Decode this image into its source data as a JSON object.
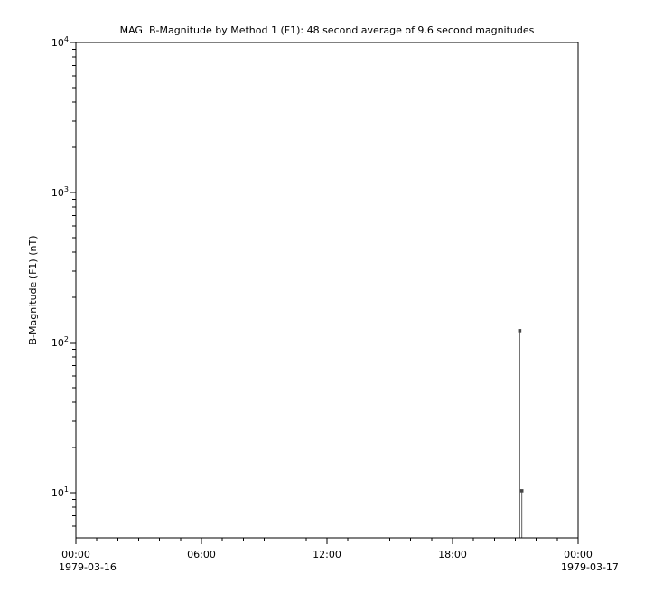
{
  "figure": {
    "background": "#ffffff"
  },
  "chart_data": {
    "type": "line",
    "title": "MAG  B-Magnitude by Method 1 (F1): 48 second average of 9.6 second magnitudes",
    "xlabel": "",
    "ylabel": "B-Magnitude (F1) (nT)",
    "grid": false,
    "legend": "none",
    "frame_color": "#000000",
    "text_color": "#000000",
    "y_axis": {
      "scale": "log",
      "min": 5,
      "max": 10000,
      "tick_label_base": "10",
      "major_tick_exponents": [
        1,
        2,
        3,
        4
      ],
      "minor_tick_mantissas": [
        2,
        3,
        4,
        5,
        6,
        7,
        8,
        9
      ]
    },
    "x_axis": {
      "unit": "hours",
      "min": 0,
      "max": 24,
      "major_tick_hours": [
        0,
        6,
        12,
        18,
        24
      ],
      "major_tick_labels": [
        "00:00",
        "06:00",
        "12:00",
        "18:00",
        "00:00"
      ],
      "minor_tick_interval_hours": 1,
      "start_date_label": "1979-03-16",
      "end_date_label": "1979-03-17"
    },
    "series": [
      {
        "name": "B-Magnitude (F1)",
        "color": "#5f5f5f",
        "marker": "square",
        "marker_color": "#474747",
        "spike_to_baseline": true,
        "points": [
          {
            "t_hours": 21.21,
            "value": 120
          },
          {
            "t_hours": 21.31,
            "value": 10.3
          }
        ]
      }
    ]
  }
}
